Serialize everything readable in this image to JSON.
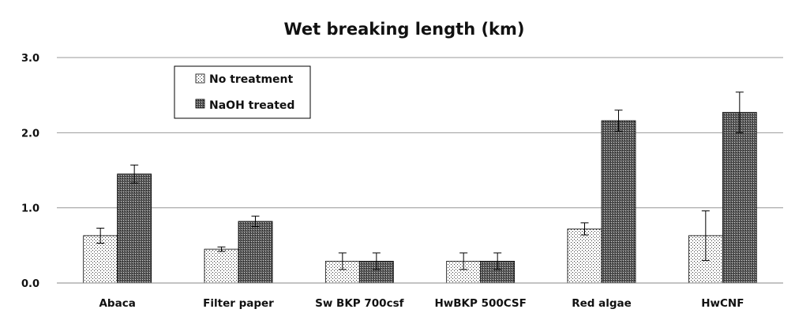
{
  "chart_data": {
    "type": "bar",
    "title": "Wet breaking length (km)",
    "xlabel": "",
    "ylabel": "",
    "ylim": [
      0,
      3.0
    ],
    "yticks": [
      "0.0",
      "1.0",
      "2.0",
      "3.0"
    ],
    "grid": true,
    "legend_position": "top-left",
    "categories": [
      "Abaca",
      "Filter paper",
      "Sw BKP 700csf",
      "HwBKP 500CSF",
      "Red algae",
      "HwCNF"
    ],
    "series": [
      {
        "name": "No treatment",
        "pattern": "dotted",
        "values": [
          0.63,
          0.45,
          0.29,
          0.29,
          0.72,
          0.63
        ],
        "errors": [
          0.1,
          0.03,
          0.11,
          0.11,
          0.08,
          0.33
        ]
      },
      {
        "name": "NaOH treated",
        "pattern": "crosshatch",
        "values": [
          1.45,
          0.82,
          0.29,
          0.29,
          2.16,
          2.27
        ],
        "errors": [
          0.12,
          0.07,
          0.11,
          0.11,
          0.14,
          0.27
        ]
      }
    ]
  }
}
